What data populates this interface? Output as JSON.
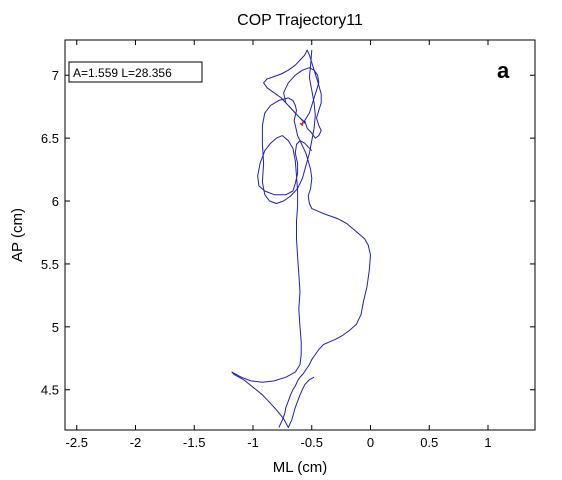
{
  "chart_data": {
    "type": "line",
    "title": "COP Trajectory11",
    "xlabel": "ML (cm)",
    "ylabel": "AP (cm)",
    "xlim": [
      -2.6,
      1.4
    ],
    "ylim": [
      4.18,
      7.28
    ],
    "xticks": [
      -2.5,
      -2,
      -1.5,
      -1,
      -0.5,
      0,
      0.5,
      1
    ],
    "xtick_labels": [
      "-2.5",
      "-2",
      "-1.5",
      "-1",
      "-0.5",
      "0",
      "0.5",
      "1"
    ],
    "yticks": [
      4.5,
      5,
      5.5,
      6,
      6.5,
      7
    ],
    "ytick_labels": [
      "4.5",
      "5",
      "5.5",
      "6",
      "6.5",
      "7"
    ],
    "annotation": "A=1.559 L=28.356",
    "panel_label": "a",
    "grid": false,
    "series": [
      {
        "color": "#1f1fbf",
        "x": [
          -0.78,
          -0.75,
          -0.73,
          -0.72,
          -0.7,
          -0.68,
          -0.66,
          -0.64,
          -0.62,
          -0.6,
          -0.57,
          -0.55,
          -0.52,
          -0.5,
          -0.47,
          -0.44,
          -0.4,
          -0.35,
          -0.3,
          -0.24,
          -0.18,
          -0.12,
          -0.08,
          -0.06,
          -0.03,
          -0.01,
          0.0,
          -0.02,
          -0.05,
          -0.1,
          -0.15,
          -0.2,
          -0.28,
          -0.4,
          -0.5,
          -0.52,
          -0.53,
          -0.51,
          -0.5,
          -0.51,
          -0.53,
          -0.55,
          -0.58,
          -0.6,
          -0.62,
          -0.63,
          -0.64,
          -0.65,
          -0.64,
          -0.63,
          -0.64,
          -0.66,
          -0.7,
          -0.78,
          -0.85,
          -0.9,
          -0.92,
          -0.92,
          -0.91,
          -0.92,
          -0.9,
          -0.86,
          -0.8,
          -0.74,
          -0.68,
          -0.62,
          -0.58,
          -0.55,
          -0.52,
          -0.5,
          -0.48,
          -0.47,
          -0.48,
          -0.5,
          -0.52,
          -0.51,
          -0.5
        ],
        "y": [
          4.2,
          4.26,
          4.31,
          4.36,
          4.41,
          4.46,
          4.5,
          4.53,
          4.57,
          4.6,
          4.63,
          4.66,
          4.7,
          4.74,
          4.78,
          4.82,
          4.86,
          4.88,
          4.9,
          4.93,
          4.97,
          5.02,
          5.1,
          5.2,
          5.32,
          5.45,
          5.57,
          5.65,
          5.7,
          5.74,
          5.78,
          5.82,
          5.86,
          5.9,
          5.94,
          5.98,
          6.04,
          6.1,
          6.18,
          6.25,
          6.32,
          6.38,
          6.44,
          6.48,
          6.52,
          6.56,
          6.6,
          6.64,
          6.68,
          6.72,
          6.76,
          6.8,
          6.82,
          6.8,
          6.76,
          6.7,
          6.6,
          6.45,
          6.3,
          6.15,
          6.05,
          6.0,
          5.98,
          6.0,
          6.04,
          6.1,
          6.18,
          6.28,
          6.38,
          6.48,
          6.58,
          6.68,
          6.78,
          6.88,
          6.98,
          7.08,
          7.2
        ]
      },
      {
        "color": "#1f1fbf",
        "x": [
          -0.5,
          -0.52,
          -0.56,
          -0.6,
          -0.63,
          -0.64,
          -0.62,
          -0.62,
          -0.64,
          -0.66,
          -0.72,
          -0.82,
          -0.9,
          -0.95,
          -0.96,
          -0.94,
          -0.9,
          -0.85,
          -0.8,
          -0.75,
          -0.7,
          -0.66,
          -0.64,
          -0.63,
          -0.62,
          -0.62,
          -0.63,
          -0.63,
          -0.62,
          -0.61,
          -0.6,
          -0.61,
          -0.6,
          -0.59,
          -0.59,
          -0.6,
          -0.64,
          -0.72,
          -0.82,
          -0.92,
          -1.02,
          -1.1,
          -1.18,
          -1.16,
          -1.08,
          -1.0,
          -0.92,
          -0.86,
          -0.8,
          -0.74,
          -0.7,
          -0.67,
          -0.64,
          -0.6,
          -0.56,
          -0.52,
          -0.48
        ],
        "y": [
          6.4,
          6.42,
          6.46,
          6.48,
          6.45,
          6.38,
          6.3,
          6.22,
          6.14,
          6.08,
          6.05,
          6.05,
          6.08,
          6.12,
          6.2,
          6.3,
          6.4,
          6.46,
          6.5,
          6.52,
          6.48,
          6.42,
          6.32,
          6.2,
          6.08,
          5.96,
          5.84,
          5.7,
          5.56,
          5.42,
          5.28,
          5.14,
          5.0,
          4.88,
          4.78,
          4.7,
          4.64,
          4.6,
          4.57,
          4.56,
          4.57,
          4.6,
          4.64,
          4.62,
          4.58,
          4.52,
          4.46,
          4.4,
          4.34,
          4.27,
          4.2,
          4.26,
          4.36,
          4.46,
          4.54,
          4.58,
          4.6
        ]
      },
      {
        "color": "#1f1fbf",
        "x": [
          -0.55,
          -0.6,
          -0.64,
          -0.68,
          -0.72,
          -0.76,
          -0.82,
          -0.88,
          -0.91,
          -0.88,
          -0.82,
          -0.76,
          -0.7,
          -0.64,
          -0.6,
          -0.56,
          -0.54,
          -0.52,
          -0.5,
          -0.48,
          -0.46,
          -0.44,
          -0.42,
          -0.42,
          -0.44,
          -0.46,
          -0.44,
          -0.42,
          -0.44,
          -0.47,
          -0.5,
          -0.54,
          -0.56,
          -0.52,
          -0.5,
          -0.48,
          -0.46,
          -0.44,
          -0.45,
          -0.48,
          -0.52,
          -0.58,
          -0.64,
          -0.7,
          -0.74,
          -0.72,
          -0.66,
          -0.6,
          -0.56,
          -0.55
        ],
        "y": [
          6.62,
          6.66,
          6.7,
          6.74,
          6.78,
          6.82,
          6.86,
          6.9,
          6.94,
          6.97,
          6.99,
          7.01,
          7.04,
          7.08,
          7.12,
          7.16,
          7.2,
          7.16,
          7.1,
          7.04,
          6.98,
          6.92,
          6.85,
          6.78,
          6.72,
          6.66,
          6.6,
          6.56,
          6.52,
          6.5,
          6.54,
          6.58,
          6.64,
          6.7,
          6.76,
          6.82,
          6.88,
          6.94,
          7.0,
          7.04,
          7.06,
          7.04,
          7.0,
          6.94,
          6.86,
          6.78,
          6.72,
          6.66,
          6.62,
          6.62
        ]
      },
      {
        "color": "#d02020",
        "x": [
          -0.6,
          -0.58,
          -0.57,
          -0.59
        ],
        "y": [
          6.62,
          6.6,
          6.63,
          6.61
        ]
      }
    ]
  }
}
